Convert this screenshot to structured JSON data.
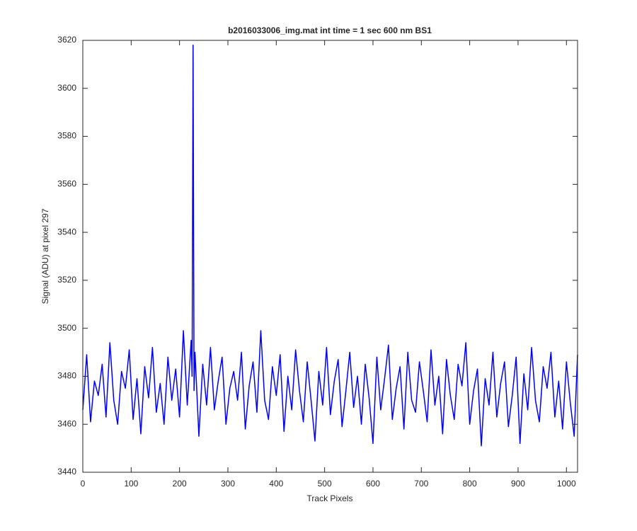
{
  "chart_data": {
    "type": "line",
    "title": "b2016033006_img.mat int time = 1 sec  600 nm BS1",
    "x_label": "Track Pixels",
    "y_label": "Signal (ADU) at pixel 297",
    "xlim": [
      0,
      1023
    ],
    "ylim": [
      3440,
      3620
    ],
    "xticks": [
      0,
      100,
      200,
      300,
      400,
      500,
      600,
      700,
      800,
      900,
      1000
    ],
    "yticks": [
      3440,
      3460,
      3480,
      3500,
      3520,
      3540,
      3560,
      3580,
      3600,
      3620
    ],
    "x": [
      0,
      8,
      16,
      24,
      32,
      40,
      48,
      56,
      64,
      72,
      80,
      88,
      96,
      104,
      112,
      120,
      128,
      136,
      144,
      152,
      160,
      168,
      176,
      184,
      192,
      200,
      208,
      216,
      224,
      226,
      228,
      230,
      232,
      240,
      248,
      256,
      264,
      272,
      280,
      288,
      296,
      304,
      312,
      320,
      328,
      336,
      344,
      352,
      360,
      368,
      376,
      384,
      392,
      400,
      408,
      416,
      424,
      432,
      440,
      448,
      456,
      464,
      472,
      480,
      488,
      496,
      504,
      512,
      520,
      528,
      536,
      544,
      552,
      560,
      568,
      576,
      584,
      592,
      600,
      608,
      616,
      624,
      632,
      640,
      648,
      656,
      664,
      672,
      680,
      688,
      696,
      704,
      712,
      720,
      728,
      736,
      744,
      752,
      760,
      768,
      776,
      784,
      792,
      800,
      808,
      816,
      824,
      832,
      840,
      848,
      856,
      864,
      872,
      880,
      888,
      896,
      904,
      912,
      920,
      928,
      936,
      944,
      952,
      960,
      968,
      976,
      984,
      992,
      1000,
      1008,
      1016,
      1023
    ],
    "series": [
      {
        "name": "pixel 297",
        "color": "#0000ff",
        "values": [
          3466,
          3489,
          3461,
          3478,
          3472,
          3485,
          3463,
          3494,
          3470,
          3460,
          3482,
          3475,
          3491,
          3462,
          3479,
          3456,
          3484,
          3471,
          3492,
          3465,
          3477,
          3460,
          3488,
          3470,
          3483,
          3463,
          3499,
          3468,
          3495,
          3480,
          3618,
          3474,
          3490,
          3455,
          3485,
          3468,
          3492,
          3466,
          3478,
          3488,
          3460,
          3475,
          3482,
          3470,
          3490,
          3458,
          3476,
          3486,
          3465,
          3499,
          3470,
          3462,
          3484,
          3472,
          3489,
          3457,
          3480,
          3466,
          3491,
          3474,
          3461,
          3486,
          3470,
          3453,
          3482,
          3468,
          3492,
          3464,
          3478,
          3487,
          3459,
          3474,
          3490,
          3467,
          3480,
          3460,
          3485,
          3471,
          3452,
          3488,
          3466,
          3479,
          3493,
          3462,
          3475,
          3484,
          3458,
          3490,
          3470,
          3465,
          3486,
          3474,
          3461,
          3491,
          3468,
          3480,
          3456,
          3487,
          3472,
          3462,
          3485,
          3476,
          3494,
          3460,
          3474,
          3483,
          3451,
          3479,
          3468,
          3490,
          3463,
          3477,
          3486,
          3459,
          3472,
          3488,
          3452,
          3481,
          3466,
          3492,
          3470,
          3461,
          3484,
          3475,
          3490,
          3463,
          3478,
          3458,
          3486,
          3469,
          3455,
          3489
        ]
      }
    ]
  }
}
